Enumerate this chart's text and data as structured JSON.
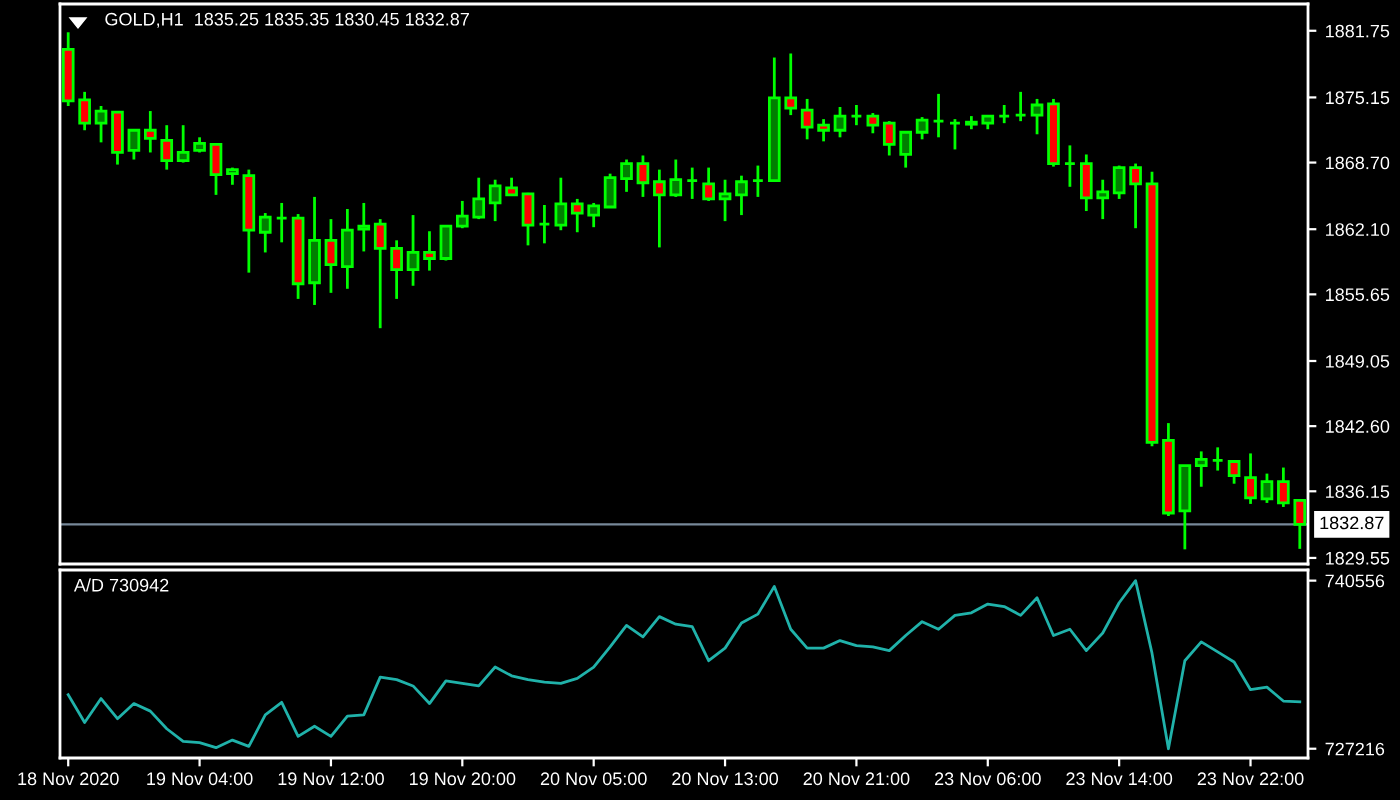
{
  "chart_data": [
    {
      "type": "candlestick",
      "title": "GOLD,H1  1835.25 1835.35 1830.45 1832.87",
      "categories": [
        null,
        null,
        null,
        null,
        null,
        null,
        null,
        null,
        null,
        null,
        null,
        null,
        null,
        null,
        null,
        null,
        null,
        null,
        null,
        null,
        null,
        null,
        null,
        null,
        null,
        null,
        null,
        null,
        null,
        null,
        null,
        null,
        null,
        null,
        null,
        null,
        null,
        null,
        null,
        null,
        null,
        null,
        null,
        null,
        null,
        null,
        null,
        null,
        null,
        null,
        null,
        null,
        null,
        null,
        null,
        null,
        null,
        null,
        null,
        null,
        null,
        null,
        null,
        null,
        null,
        null,
        null,
        null,
        null,
        null,
        null,
        null,
        null,
        null,
        null,
        null
      ],
      "ohlc": [
        [
          1879.9,
          1881.6,
          1874.3,
          1874.8
        ],
        [
          1874.9,
          1875.7,
          1871.9,
          1872.6
        ],
        [
          1872.6,
          1874.3,
          1870.7,
          1873.8
        ],
        [
          1873.7,
          1873.8,
          1868.5,
          1869.7
        ],
        [
          1869.9,
          1872.0,
          1869.0,
          1871.9
        ],
        [
          1871.9,
          1873.8,
          1869.7,
          1871.1
        ],
        [
          1870.9,
          1872.4,
          1868.0,
          1868.9
        ],
        [
          1868.9,
          1872.4,
          1868.7,
          1869.7
        ],
        [
          1869.9,
          1871.2,
          1869.7,
          1870.6
        ],
        [
          1870.5,
          1870.6,
          1865.5,
          1867.5
        ],
        [
          1867.6,
          1868.2,
          1866.5,
          1868.0
        ],
        [
          1867.4,
          1868.0,
          1857.8,
          1862.0
        ],
        [
          1861.8,
          1863.7,
          1859.8,
          1863.3
        ],
        [
          1863.2,
          1864.7,
          1860.8,
          1863.2
        ],
        [
          1863.2,
          1863.6,
          1855.2,
          1856.7
        ],
        [
          1856.8,
          1865.3,
          1854.6,
          1861.0
        ],
        [
          1861.0,
          1863.1,
          1855.8,
          1858.6
        ],
        [
          1858.4,
          1864.1,
          1856.2,
          1862.0
        ],
        [
          1862.1,
          1864.7,
          1859.9,
          1862.4
        ],
        [
          1862.6,
          1863.1,
          1852.3,
          1860.2
        ],
        [
          1860.2,
          1861.0,
          1855.2,
          1858.1
        ],
        [
          1858.1,
          1863.5,
          1856.5,
          1859.8
        ],
        [
          1859.8,
          1861.9,
          1858.0,
          1859.2
        ],
        [
          1859.2,
          1862.5,
          1859.0,
          1862.4
        ],
        [
          1862.4,
          1864.9,
          1862.2,
          1863.4
        ],
        [
          1863.3,
          1867.2,
          1863.1,
          1865.1
        ],
        [
          1864.7,
          1867.0,
          1862.9,
          1866.4
        ],
        [
          1866.2,
          1867.2,
          1865.4,
          1865.5
        ],
        [
          1865.6,
          1865.7,
          1860.5,
          1862.5
        ],
        [
          1862.6,
          1864.5,
          1860.7,
          1862.6
        ],
        [
          1862.5,
          1867.2,
          1862.0,
          1864.6
        ],
        [
          1864.6,
          1865.1,
          1861.8,
          1863.7
        ],
        [
          1863.5,
          1864.7,
          1862.3,
          1864.4
        ],
        [
          1864.3,
          1867.6,
          1864.2,
          1867.2
        ],
        [
          1867.1,
          1869.0,
          1865.8,
          1868.6
        ],
        [
          1868.6,
          1869.4,
          1865.3,
          1866.7
        ],
        [
          1866.8,
          1868.0,
          1860.3,
          1865.5
        ],
        [
          1865.5,
          1869.0,
          1865.3,
          1867.0
        ],
        [
          1866.9,
          1868.2,
          1865.1,
          1866.9
        ],
        [
          1866.6,
          1868.2,
          1864.9,
          1865.1
        ],
        [
          1865.1,
          1867.0,
          1862.9,
          1865.6
        ],
        [
          1865.5,
          1867.4,
          1863.5,
          1866.8
        ],
        [
          1866.9,
          1868.4,
          1865.3,
          1866.9
        ],
        [
          1866.9,
          1879.1,
          1866.8,
          1875.1
        ],
        [
          1875.1,
          1879.5,
          1873.4,
          1874.1
        ],
        [
          1873.9,
          1875.0,
          1871.0,
          1872.2
        ],
        [
          1872.4,
          1873.0,
          1870.8,
          1871.9
        ],
        [
          1871.9,
          1874.2,
          1871.2,
          1873.3
        ],
        [
          1873.3,
          1874.4,
          1872.4,
          1873.3
        ],
        [
          1873.3,
          1873.6,
          1871.6,
          1872.4
        ],
        [
          1872.6,
          1872.8,
          1869.4,
          1870.5
        ],
        [
          1869.5,
          1871.8,
          1868.2,
          1871.7
        ],
        [
          1871.7,
          1873.2,
          1871.0,
          1872.9
        ],
        [
          1872.8,
          1875.5,
          1871.2,
          1872.8
        ],
        [
          1872.6,
          1873.0,
          1870.0,
          1872.6
        ],
        [
          1872.5,
          1873.3,
          1872.0,
          1872.7
        ],
        [
          1872.6,
          1873.4,
          1872.0,
          1873.3
        ],
        [
          1873.3,
          1874.4,
          1872.6,
          1873.3
        ],
        [
          1873.4,
          1875.7,
          1872.8,
          1873.4
        ],
        [
          1873.4,
          1875.0,
          1871.5,
          1874.4
        ],
        [
          1874.5,
          1875.0,
          1868.3,
          1868.6
        ],
        [
          1868.6,
          1870.4,
          1866.3,
          1868.6
        ],
        [
          1868.6,
          1869.5,
          1863.9,
          1865.2
        ],
        [
          1865.2,
          1867.0,
          1863.1,
          1865.8
        ],
        [
          1865.7,
          1868.4,
          1865.1,
          1868.2
        ],
        [
          1868.2,
          1868.6,
          1862.2,
          1866.6
        ],
        [
          1866.6,
          1867.8,
          1840.6,
          1841.0
        ],
        [
          1841.2,
          1842.9,
          1833.7,
          1834.0
        ],
        [
          1834.2,
          1838.7,
          1830.4,
          1838.7
        ],
        [
          1838.7,
          1840.1,
          1836.6,
          1839.3
        ],
        [
          1839.2,
          1840.5,
          1838.2,
          1839.2
        ],
        [
          1839.1,
          1839.2,
          1836.9,
          1837.7
        ],
        [
          1837.5,
          1839.9,
          1834.9,
          1835.5
        ],
        [
          1835.4,
          1837.9,
          1835.0,
          1837.1
        ],
        [
          1837.1,
          1838.5,
          1834.6,
          1835.0
        ],
        [
          1835.25,
          1835.35,
          1830.45,
          1832.87
        ]
      ],
      "color": "#00ff00",
      "colors": [
        "#ff0000",
        "#ff0000",
        "#008000",
        "#ff0000",
        "#008000",
        "#ff0000",
        "#ff0000",
        "#008000",
        "#008000",
        "#ff0000",
        "#008000",
        "#ff0000",
        "#008000",
        "#00ff00",
        "#ff0000",
        "#008000",
        "#ff0000",
        "#008000",
        "#008000",
        "#ff0000",
        "#ff0000",
        "#008000",
        "#ff0000",
        "#008000",
        "#008000",
        "#008000",
        "#008000",
        "#ff0000",
        "#ff0000",
        "#00ff00",
        "#008000",
        "#ff0000",
        "#008000",
        "#008000",
        "#008000",
        "#ff0000",
        "#ff0000",
        "#008000",
        "#00ff00",
        "#ff0000",
        "#008000",
        "#008000",
        "#00ff00",
        "#008000",
        "#ff0000",
        "#ff0000",
        "#ff0000",
        "#008000",
        "#00ff00",
        "#ff0000",
        "#ff0000",
        "#008000",
        "#008000",
        "#00ff00",
        "#00ff00",
        "#008000",
        "#008000",
        "#00ff00",
        "#00ff00",
        "#008000",
        "#ff0000",
        "#00ff00",
        "#ff0000",
        "#008000",
        "#008000",
        "#ff0000",
        "#ff0000",
        "#ff0000",
        "#008000",
        "#008000",
        "#00ff00",
        "#ff0000",
        "#ff0000",
        "#008000",
        "#ff0000",
        "#ff0000"
      ],
      "ylim": [
        1828.95,
        1884.4
      ],
      "yticks": [
        1881.75,
        1875.15,
        {
          "value": 1868.7,
          "label": "1868.70"
        },
        {
          "value": 1862.1,
          "label": "1862.10"
        },
        1855.65,
        1849.05,
        {
          "value": 1842.6,
          "label": "1842.60"
        },
        1836.15,
        1829.55
      ],
      "ref_lines": [
        {
          "axis": "y",
          "value": 1832.87,
          "label": "1832.87",
          "color": "#778899"
        }
      ],
      "tick_labels": "y"
    },
    {
      "type": "line",
      "title": "A/D 730942",
      "categories": [
        "18 Nov 2020",
        null,
        null,
        null,
        null,
        null,
        null,
        null,
        "19 Nov 04:00",
        null,
        null,
        null,
        null,
        null,
        null,
        null,
        "19 Nov 12:00",
        null,
        null,
        null,
        null,
        null,
        null,
        null,
        "19 Nov 20:00",
        null,
        null,
        null,
        null,
        null,
        null,
        null,
        "20 Nov 05:00",
        null,
        null,
        null,
        null,
        null,
        null,
        null,
        "20 Nov 13:00",
        null,
        null,
        null,
        null,
        null,
        null,
        null,
        "20 Nov 21:00",
        null,
        null,
        null,
        null,
        null,
        null,
        null,
        "23 Nov 06:00",
        null,
        null,
        null,
        null,
        null,
        null,
        null,
        "23 Nov 14:00",
        null,
        null,
        null,
        null,
        null,
        null,
        null,
        "23 Nov 22:00",
        null,
        null,
        null
      ],
      "series": [
        {
          "color": "#20b2aa",
          "values": [
            731500,
            729300,
            731200,
            729600,
            730800,
            730200,
            728800,
            727800,
            727700,
            727300,
            727900,
            727400,
            729900,
            730900,
            728200,
            729000,
            728200,
            729800,
            729900,
            732900,
            732700,
            732200,
            730800,
            732600,
            732400,
            732200,
            733700,
            733000,
            732700,
            732500,
            732400,
            732800,
            733700,
            735300,
            737000,
            736100,
            737700,
            737100,
            736900,
            734200,
            735200,
            737200,
            737900,
            740100,
            736700,
            735200,
            735200,
            735800,
            735400,
            735300,
            735000,
            736200,
            737300,
            736700,
            737800,
            738000,
            738700,
            738500,
            737800,
            739200,
            736200,
            736700,
            735000,
            736400,
            738800,
            740556,
            734800,
            727216,
            734200,
            735700,
            734900,
            734100,
            731900,
            732100,
            731000,
            730942
          ]
        }
      ],
      "ylim": [
        726480,
        741400
      ],
      "yticks": [
        740556,
        727216
      ]
    }
  ]
}
